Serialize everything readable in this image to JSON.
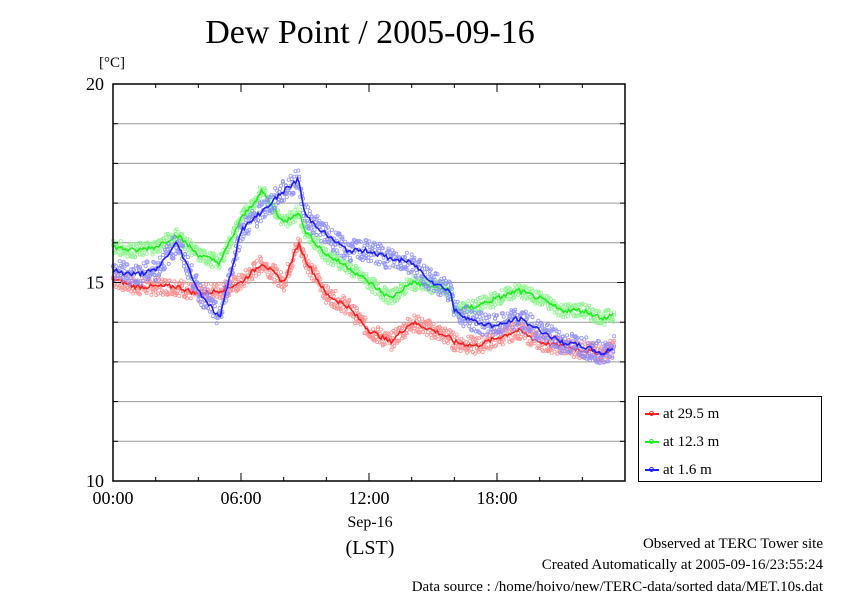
{
  "title": "Dew Point / 2005-09-16",
  "unit_label": "[°C]",
  "x_date_label": "Sep-16",
  "x_zone_label": "(LST)",
  "footer": {
    "site": "Observed at TERC Tower site",
    "created": "Created Automatically at 2005-09-16/23:55:24",
    "source": "Data source : /home/hoivo/new/TERC-data/sorted  data/MET.10s.dat"
  },
  "chart_data": {
    "type": "line",
    "title": "Dew Point / 2005-09-16",
    "ylabel": "[°C]",
    "xlabel": "",
    "xlim_hours": [
      0,
      24
    ],
    "ylim": [
      10,
      20
    ],
    "x_ticks": [
      "00:00",
      "06:00",
      "12:00",
      "18:00"
    ],
    "x_tick_hours": [
      0,
      6,
      12,
      18
    ],
    "y_ticks": [
      10,
      15,
      20
    ],
    "grid": "horizontal every 1 °C",
    "legend_placement": "bottom-right, outside",
    "x_hours": [
      0,
      1,
      2,
      3,
      4,
      5,
      6,
      7,
      8,
      8.7,
      9,
      10,
      11,
      12,
      13,
      14,
      15,
      15.8,
      16,
      17,
      18,
      19,
      20,
      21,
      22,
      23,
      23.5
    ],
    "series": [
      {
        "name": "at 29.5 m",
        "color": "#ff2020",
        "values": [
          15.1,
          14.9,
          14.9,
          14.9,
          14.7,
          14.8,
          15.0,
          15.5,
          15.0,
          16.0,
          15.6,
          14.7,
          14.4,
          13.8,
          13.5,
          14.0,
          13.8,
          13.6,
          13.5,
          13.4,
          13.6,
          13.8,
          13.5,
          13.4,
          13.3,
          13.2,
          13.4
        ]
      },
      {
        "name": "at 12.3 m",
        "color": "#20ee20",
        "values": [
          15.9,
          15.8,
          15.9,
          16.2,
          15.7,
          15.5,
          16.6,
          17.3,
          16.5,
          16.8,
          16.3,
          15.7,
          15.4,
          15.0,
          14.6,
          15.0,
          14.9,
          14.8,
          14.3,
          14.4,
          14.6,
          14.8,
          14.6,
          14.3,
          14.3,
          14.1,
          14.2
        ]
      },
      {
        "name": "at 1.6 m",
        "color": "#2020ff",
        "values": [
          15.3,
          15.2,
          15.3,
          16.0,
          14.8,
          14.1,
          16.3,
          16.8,
          17.3,
          17.6,
          16.7,
          16.2,
          15.8,
          15.8,
          15.6,
          15.5,
          15.0,
          14.8,
          14.3,
          14.0,
          13.9,
          14.1,
          13.8,
          13.5,
          13.4,
          13.2,
          13.4
        ]
      }
    ]
  }
}
